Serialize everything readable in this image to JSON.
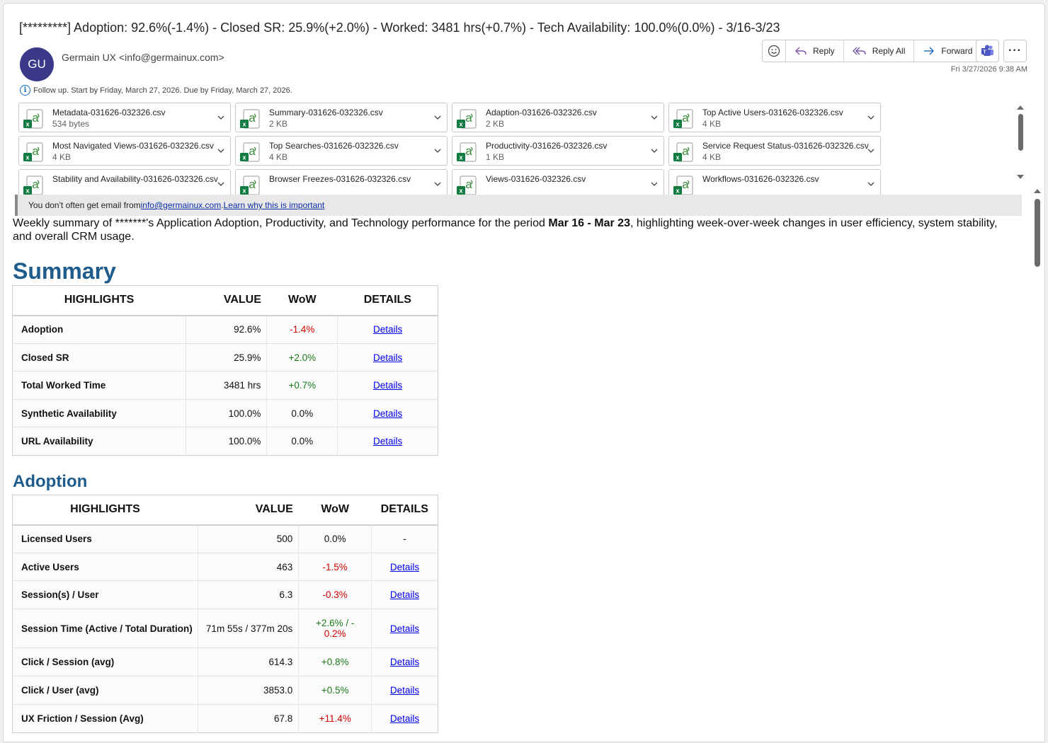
{
  "subject": "[*********] Adoption: 92.6%(-1.4%) - Closed SR: 25.9%(+2.0%) - Worked: 3481 hrs(+0.7%) - Tech Availability: 100.0%(0.0%) - 3/16-3/23",
  "sender": {
    "initials": "GU",
    "display": "Germain UX <info@germainux.com>"
  },
  "actions": {
    "reply": "Reply",
    "reply_all": "Reply All",
    "forward": "Forward",
    "more": "···"
  },
  "datetime": "Fri 3/27/2026 9:38 AM",
  "followup": "Follow up.  Start by Friday, March 27, 2026.  Due by Friday, March 27, 2026.",
  "attachments": [
    {
      "name": "Metadata-031626-032326.csv",
      "size": "534 bytes"
    },
    {
      "name": "Summary-031626-032326.csv",
      "size": "2 KB"
    },
    {
      "name": "Adaption-031626-032326.csv",
      "size": "2 KB"
    },
    {
      "name": "Top Active Users-031626-032326.csv",
      "size": "4 KB"
    },
    {
      "name": "Most Navigated Views-031626-032326.csv",
      "size": "4 KB"
    },
    {
      "name": "Top Searches-031626-032326.csv",
      "size": "4 KB"
    },
    {
      "name": "Productivity-031626-032326.csv",
      "size": "1 KB"
    },
    {
      "name": "Service Request Status-031626-032326.csv",
      "size": "4 KB"
    },
    {
      "name": "Stability and Availability-031626-032326.csv",
      "size": ""
    },
    {
      "name": "Browser Freezes-031626-032326.csv",
      "size": ""
    },
    {
      "name": "Views-031626-032326.csv",
      "size": ""
    },
    {
      "name": "Workflows-031626-032326.csv",
      "size": ""
    }
  ],
  "banner": {
    "text": "You don't often get email from ",
    "email": "info@germainux.com",
    "sep": ". ",
    "link": "Learn why this is important"
  },
  "intro": {
    "pre": "Weekly summary of *******'s Application Adoption, Productivity, and Technology performance for the period ",
    "period": "Mar 16 - Mar 23",
    "post": ", highlighting week-over-week changes in user efficiency, system stability, and overall CRM usage."
  },
  "summary": {
    "title": "Summary",
    "headers": {
      "highlights": "HIGHLIGHTS",
      "value": "VALUE",
      "wow": "WoW",
      "details": "DETAILS"
    },
    "rows": [
      {
        "label": "Adoption",
        "value": "92.6%",
        "wow": "-1.4%",
        "trend": "neg",
        "details": "Details"
      },
      {
        "label": "Closed SR",
        "value": "25.9%",
        "wow": "+2.0%",
        "trend": "pos",
        "details": "Details"
      },
      {
        "label": "Total Worked Time",
        "value": "3481 hrs",
        "wow": "+0.7%",
        "trend": "pos",
        "details": "Details"
      },
      {
        "label": "Synthetic Availability",
        "value": "100.0%",
        "wow": "0.0%",
        "trend": "neu",
        "details": "Details"
      },
      {
        "label": "URL Availability",
        "value": "100.0%",
        "wow": "0.0%",
        "trend": "neu",
        "details": "Details"
      }
    ]
  },
  "adoption": {
    "title": "Adoption",
    "headers": {
      "highlights": "HIGHLIGHTS",
      "value": "VALUE",
      "wow": "WoW",
      "details": "DETAILS"
    },
    "rows": [
      {
        "label": "Licensed Users",
        "value": "500",
        "wow": "0.0%",
        "trend": "neu",
        "details": "-"
      },
      {
        "label": "Active Users",
        "value": "463",
        "wow": "-1.5%",
        "trend": "neg",
        "details": "Details"
      },
      {
        "label": "Session(s) / User",
        "value": "6.3",
        "wow": "-0.3%",
        "trend": "neg",
        "details": "Details"
      },
      {
        "label": "Session Time (Active / Total Duration)",
        "value": "71m 55s / 377m 20s",
        "wow": "+2.6% / -",
        "wow2": "0.2%",
        "trend": "pos",
        "trend2": "neg",
        "details": "Details"
      },
      {
        "label": "Click / Session (avg)",
        "value": "614.3",
        "wow": "+0.8%",
        "trend": "pos",
        "details": "Details"
      },
      {
        "label": "Click / User (avg)",
        "value": "3853.0",
        "wow": "+0.5%",
        "trend": "pos",
        "details": "Details"
      },
      {
        "label": "UX Friction / Session (Avg)",
        "value": "67.8",
        "wow": "+11.4%",
        "trend": "neg",
        "details": "Details"
      }
    ]
  },
  "colors": {
    "accent": "#1f5c8c",
    "negative": "#d40000",
    "positive": "#1a7a1a",
    "avatar": "#3b3a8a"
  }
}
